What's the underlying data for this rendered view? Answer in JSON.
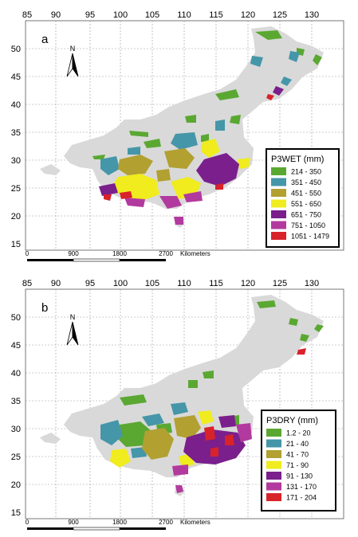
{
  "colors": {
    "land": "#d9d9d9",
    "class_colors": [
      "#5aa832",
      "#4596a8",
      "#b2a031",
      "#f0ec1e",
      "#7a1f8c",
      "#b23a9e",
      "#d8232a"
    ]
  },
  "maps": [
    {
      "panel_label": "a",
      "x_ticks": [
        "85",
        "90",
        "95",
        "100",
        "105",
        "110",
        "115",
        "120",
        "125",
        "130"
      ],
      "y_ticks": [
        "50",
        "45",
        "40",
        "35",
        "30",
        "25",
        "20",
        "15"
      ],
      "north_label": "N",
      "scale_labels": [
        "0",
        "900",
        "1800",
        "2700"
      ],
      "scale_unit": "Kilometers",
      "legend": {
        "title": "P3WET (mm)",
        "items": [
          "214 - 350",
          "351 - 450",
          "451 - 550",
          "551 - 650",
          "651 - 750",
          "751 - 1050",
          "1051 - 1479"
        ]
      }
    },
    {
      "panel_label": "b",
      "x_ticks": [
        "85",
        "90",
        "95",
        "100",
        "105",
        "110",
        "115",
        "120",
        "125",
        "130"
      ],
      "y_ticks": [
        "50",
        "45",
        "40",
        "35",
        "30",
        "25",
        "20",
        "15"
      ],
      "north_label": "N",
      "scale_labels": [
        "0",
        "900",
        "1800",
        "2700"
      ],
      "scale_unit": "Kilometers",
      "legend": {
        "title": "P3DRY (mm)",
        "items": [
          "1.2 - 20",
          "21 - 40",
          "41 - 70",
          "71 - 90",
          "91 - 130",
          "131 - 170",
          "171 - 204"
        ]
      }
    }
  ]
}
